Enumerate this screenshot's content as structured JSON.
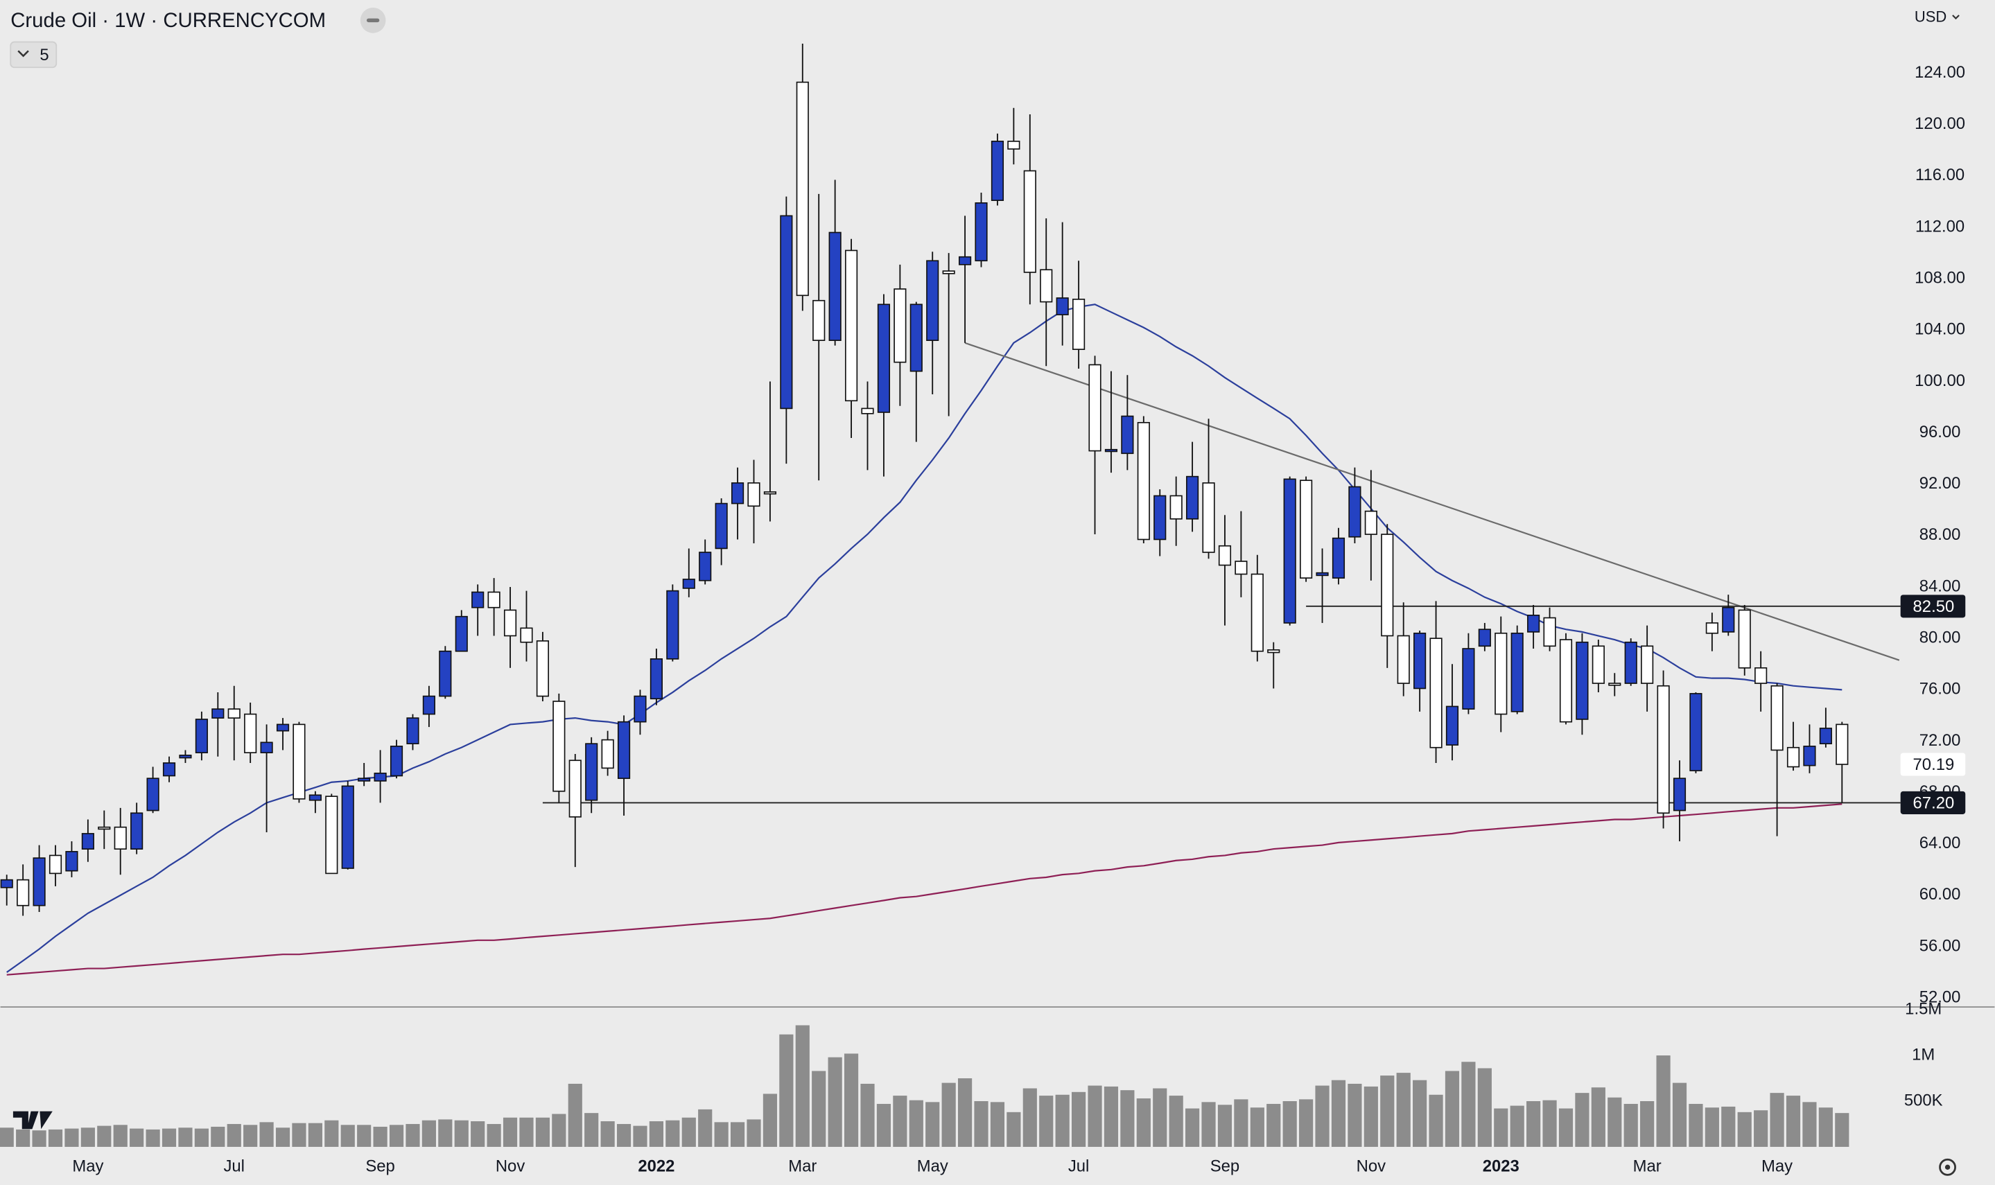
{
  "chart_data": {
    "type": "candlestick",
    "title": "Crude Oil · 1W · CURRENCYCOM",
    "indicator_count": "5",
    "currency": "USD",
    "up_color": "#2442c2",
    "down_color": "#ffffff",
    "categories": [
      null,
      null,
      null,
      null,
      null,
      "May",
      null,
      null,
      null,
      null,
      null,
      null,
      null,
      null,
      "Jul",
      null,
      null,
      null,
      null,
      null,
      null,
      null,
      null,
      "Sep",
      null,
      null,
      null,
      null,
      null,
      null,
      null,
      "Nov",
      null,
      null,
      null,
      null,
      null,
      null,
      null,
      null,
      "2022",
      null,
      null,
      null,
      null,
      null,
      null,
      null,
      null,
      "Mar",
      null,
      null,
      null,
      null,
      null,
      null,
      null,
      "May",
      null,
      null,
      null,
      null,
      null,
      null,
      null,
      null,
      "Jul",
      null,
      null,
      null,
      null,
      null,
      null,
      null,
      null,
      "Sep",
      null,
      null,
      null,
      null,
      null,
      null,
      null,
      null,
      "Nov",
      null,
      null,
      null,
      null,
      null,
      null,
      null,
      "2023",
      null,
      null,
      null,
      null,
      null,
      null,
      null,
      null,
      "Mar",
      null,
      null,
      null,
      null,
      null,
      null,
      null,
      "May",
      null,
      null,
      null,
      null
    ],
    "open": [
      60.6,
      61.2,
      59.2,
      63.1,
      61.9,
      63.6,
      65.3,
      65.3,
      63.6,
      66.6,
      69.3,
      70.7,
      71.1,
      73.8,
      74.5,
      74.1,
      71.1,
      72.8,
      73.3,
      67.4,
      67.7,
      62.1,
      68.9,
      68.9,
      69.3,
      71.8,
      74.1,
      75.5,
      79.0,
      82.4,
      83.6,
      82.2,
      80.8,
      79.8,
      75.1,
      70.5,
      67.4,
      72.1,
      69.1,
      73.5,
      75.3,
      78.4,
      83.9,
      84.5,
      87.0,
      90.5,
      92.1,
      91.4,
      97.9,
      123.3,
      106.3,
      103.2,
      110.2,
      97.9,
      97.6,
      107.2,
      100.8,
      103.2,
      108.6,
      109.1,
      109.4,
      114.1,
      118.7,
      116.4,
      108.7,
      105.2,
      106.4,
      101.3,
      94.6,
      94.4,
      96.8,
      87.7,
      91.1,
      89.3,
      92.1,
      87.2,
      86.0,
      85.0,
      79.1,
      81.2,
      92.3,
      84.9,
      84.7,
      87.9,
      89.9,
      88.1,
      80.2,
      76.1,
      80.0,
      71.7,
      74.5,
      79.4,
      80.4,
      74.3,
      80.5,
      81.6,
      79.9,
      73.7,
      79.4,
      76.5,
      76.5,
      79.4,
      76.3,
      66.6,
      69.7,
      81.2,
      80.5,
      82.2,
      77.7,
      76.3,
      71.5,
      70.1,
      71.8,
      73.3
    ],
    "high": [
      61.6,
      62.4,
      63.9,
      63.9,
      64.2,
      65.9,
      66.6,
      66.8,
      67.2,
      70.0,
      70.8,
      71.3,
      74.3,
      75.8,
      76.3,
      75.0,
      73.3,
      73.8,
      73.5,
      68.1,
      67.9,
      68.9,
      70.3,
      71.3,
      72.1,
      74.1,
      76.3,
      79.4,
      82.2,
      84.2,
      84.7,
      84.0,
      83.7,
      80.5,
      75.7,
      71.0,
      72.3,
      72.8,
      74.0,
      76.0,
      79.2,
      84.2,
      87.0,
      87.7,
      90.9,
      93.3,
      93.9,
      100.0,
      114.4,
      126.3,
      114.6,
      115.7,
      111.1,
      100.0,
      106.8,
      109.1,
      106.2,
      110.1,
      110.0,
      112.9,
      114.7,
      119.3,
      121.3,
      120.8,
      112.7,
      112.4,
      109.4,
      102.0,
      100.8,
      100.5,
      97.3,
      91.6,
      92.6,
      95.3,
      97.1,
      89.6,
      89.9,
      86.5,
      79.7,
      92.6,
      92.6,
      87.0,
      88.6,
      93.3,
      93.1,
      88.9,
      82.8,
      80.6,
      82.9,
      78.0,
      80.4,
      81.2,
      81.7,
      81.0,
      82.6,
      82.4,
      80.4,
      80.4,
      79.9,
      77.3,
      80.0,
      81.0,
      77.5,
      70.5,
      75.8,
      82.0,
      83.4,
      82.6,
      79.0,
      76.5,
      73.5,
      73.3,
      74.6,
      73.5
    ],
    "low": [
      59.2,
      58.4,
      58.7,
      60.7,
      61.4,
      62.6,
      63.6,
      61.6,
      63.2,
      66.4,
      68.8,
      70.3,
      70.5,
      70.8,
      70.5,
      70.3,
      64.9,
      71.3,
      67.2,
      66.4,
      61.7,
      62.0,
      68.5,
      67.2,
      69.1,
      71.3,
      73.1,
      75.3,
      79.2,
      80.2,
      80.2,
      77.7,
      78.2,
      75.1,
      67.2,
      62.2,
      66.4,
      69.3,
      66.2,
      72.5,
      74.8,
      78.2,
      83.2,
      84.2,
      85.7,
      87.7,
      87.4,
      89.1,
      93.6,
      105.5,
      92.3,
      102.8,
      95.6,
      93.1,
      92.6,
      98.1,
      95.3,
      99.0,
      97.3,
      103.0,
      108.9,
      113.7,
      116.9,
      106.0,
      101.2,
      102.8,
      101.0,
      88.1,
      92.9,
      93.1,
      87.4,
      86.4,
      87.2,
      88.3,
      86.2,
      81.0,
      83.2,
      78.2,
      76.1,
      81.0,
      84.4,
      81.2,
      84.2,
      87.4,
      84.5,
      77.7,
      75.5,
      74.3,
      70.3,
      70.5,
      74.1,
      79.0,
      72.7,
      74.1,
      79.2,
      79.0,
      73.3,
      72.5,
      75.8,
      75.5,
      76.3,
      74.3,
      65.2,
      64.2,
      69.5,
      79.0,
      80.2,
      77.1,
      74.3,
      64.6,
      69.7,
      69.5,
      71.5,
      67.2
    ],
    "close": [
      61.2,
      59.2,
      62.9,
      61.7,
      63.4,
      64.8,
      65.2,
      63.6,
      66.4,
      69.1,
      70.3,
      70.9,
      73.7,
      74.5,
      73.8,
      71.1,
      71.9,
      73.3,
      67.5,
      67.8,
      61.7,
      68.5,
      69.1,
      69.5,
      71.6,
      73.8,
      75.5,
      79.0,
      81.7,
      83.6,
      82.4,
      80.2,
      79.7,
      75.5,
      68.1,
      66.1,
      71.8,
      69.9,
      73.5,
      75.5,
      78.4,
      83.7,
      84.6,
      86.7,
      90.5,
      92.1,
      90.3,
      91.3,
      112.9,
      106.7,
      103.2,
      111.6,
      98.5,
      97.5,
      106.0,
      101.5,
      106.0,
      109.4,
      108.4,
      109.7,
      113.9,
      118.7,
      118.1,
      108.5,
      106.2,
      106.5,
      102.5,
      94.6,
      94.7,
      97.3,
      87.7,
      91.1,
      89.3,
      92.6,
      86.7,
      85.7,
      85.0,
      79.0,
      78.9,
      92.4,
      84.7,
      85.1,
      87.8,
      91.8,
      88.1,
      80.2,
      76.5,
      80.4,
      71.5,
      74.7,
      79.2,
      80.7,
      74.1,
      80.4,
      81.8,
      79.4,
      73.5,
      79.7,
      76.5,
      76.4,
      79.7,
      76.5,
      66.4,
      69.1,
      75.7,
      80.4,
      82.4,
      77.7,
      76.5,
      71.3,
      70.0,
      71.6,
      73.0,
      70.19
    ],
    "ylim": [
      51.3,
      129.7
    ],
    "yticks": [
      {
        "value": 52,
        "label": "52.00"
      },
      {
        "value": 56,
        "label": "56.00"
      },
      {
        "value": 60,
        "label": "60.00"
      },
      {
        "value": 64,
        "label": "64.00"
      },
      {
        "value": 68,
        "label": "68.00"
      },
      {
        "value": 72,
        "label": "72.00"
      },
      {
        "value": 76,
        "label": "76.00"
      },
      {
        "value": 80,
        "label": "80.00"
      },
      {
        "value": 84,
        "label": "84.00"
      },
      {
        "value": 88,
        "label": "88.00"
      },
      {
        "value": 92,
        "label": "92.00"
      },
      {
        "value": 96,
        "label": "96.00"
      },
      {
        "value": 100,
        "label": "100.00"
      },
      {
        "value": 104,
        "label": "104.00"
      },
      {
        "value": 108,
        "label": "108.00"
      },
      {
        "value": 112,
        "label": "112.00"
      },
      {
        "value": 116,
        "label": "116.00"
      },
      {
        "value": 120,
        "label": "120.00"
      },
      {
        "value": 124,
        "label": "124.00"
      }
    ],
    "lines": [
      {
        "color": "#2b3f9c",
        "values": [
          54.0,
          54.9,
          55.8,
          56.8,
          57.7,
          58.6,
          59.3,
          60.0,
          60.7,
          61.4,
          62.3,
          63.1,
          64.0,
          64.9,
          65.7,
          66.4,
          67.2,
          67.6,
          68.0,
          68.4,
          68.8,
          68.9,
          69.1,
          69.2,
          69.3,
          69.9,
          70.4,
          71.0,
          71.5,
          72.1,
          72.7,
          73.3,
          73.4,
          73.5,
          73.7,
          73.8,
          73.6,
          73.5,
          73.3,
          74.1,
          75.0,
          75.8,
          76.7,
          77.5,
          78.4,
          79.2,
          80.0,
          80.9,
          81.7,
          83.2,
          84.7,
          85.8,
          87.0,
          88.1,
          89.4,
          90.6,
          92.3,
          93.9,
          95.6,
          97.5,
          99.3,
          101.2,
          103.0,
          103.8,
          104.7,
          105.5,
          105.8,
          106.0,
          105.4,
          104.8,
          104.2,
          103.5,
          102.7,
          102.0,
          101.2,
          100.3,
          99.5,
          98.7,
          97.9,
          97.1,
          95.8,
          94.4,
          93.1,
          91.6,
          90.1,
          88.6,
          87.5,
          86.3,
          85.2,
          84.5,
          83.9,
          83.2,
          82.7,
          82.1,
          81.6,
          81.0,
          80.7,
          80.5,
          80.2,
          79.9,
          79.5,
          79.2,
          78.5,
          77.7,
          77.0,
          76.9,
          76.9,
          76.8,
          76.6,
          76.5,
          76.3,
          76.2,
          76.1,
          76.0
        ]
      },
      {
        "color": "#8e1f55",
        "values": [
          53.8,
          53.9,
          54.0,
          54.1,
          54.2,
          54.3,
          54.3,
          54.4,
          54.5,
          54.6,
          54.7,
          54.8,
          54.9,
          55.0,
          55.1,
          55.2,
          55.3,
          55.4,
          55.4,
          55.5,
          55.6,
          55.7,
          55.8,
          55.9,
          56.0,
          56.1,
          56.2,
          56.3,
          56.4,
          56.5,
          56.5,
          56.6,
          56.7,
          56.8,
          56.9,
          57.0,
          57.1,
          57.2,
          57.3,
          57.4,
          57.5,
          57.6,
          57.7,
          57.8,
          57.9,
          58.0,
          58.1,
          58.2,
          58.4,
          58.6,
          58.8,
          59.0,
          59.2,
          59.4,
          59.6,
          59.8,
          59.9,
          60.1,
          60.3,
          60.5,
          60.7,
          60.9,
          61.1,
          61.3,
          61.4,
          61.6,
          61.7,
          61.9,
          62.0,
          62.2,
          62.3,
          62.5,
          62.7,
          62.8,
          63.0,
          63.1,
          63.3,
          63.4,
          63.6,
          63.7,
          63.8,
          63.9,
          64.1,
          64.2,
          64.3,
          64.4,
          64.5,
          64.6,
          64.7,
          64.8,
          65.0,
          65.1,
          65.2,
          65.3,
          65.4,
          65.5,
          65.6,
          65.7,
          65.8,
          65.9,
          65.9,
          66.0,
          66.1,
          66.2,
          66.3,
          66.4,
          66.5,
          66.6,
          66.7,
          66.8,
          66.8,
          66.9,
          67.0,
          67.1
        ]
      }
    ],
    "hlines": [
      {
        "value": 82.5,
        "label": "82.50"
      },
      {
        "value": 67.2,
        "label": "67.20"
      }
    ],
    "last_price": 70.19,
    "trendline": [
      103.0,
      78.3
    ],
    "volume": {
      "color": "#8c8c8c",
      "ylim": [
        0,
        1530000
      ],
      "yticks": [
        {
          "value": 500000,
          "label": "500K"
        },
        {
          "value": 1000000,
          "label": "1M"
        },
        {
          "value": 1500000,
          "label": "1.5M"
        }
      ],
      "values": [
        210000,
        190000,
        180000,
        190000,
        200000,
        210000,
        230000,
        240000,
        200000,
        190000,
        200000,
        210000,
        200000,
        220000,
        250000,
        240000,
        270000,
        210000,
        260000,
        260000,
        290000,
        240000,
        240000,
        220000,
        240000,
        250000,
        290000,
        300000,
        290000,
        280000,
        250000,
        320000,
        320000,
        320000,
        360000,
        690000,
        370000,
        280000,
        250000,
        230000,
        280000,
        290000,
        320000,
        410000,
        270000,
        270000,
        300000,
        580000,
        1230000,
        1330000,
        830000,
        980000,
        1020000,
        690000,
        470000,
        560000,
        510000,
        490000,
        700000,
        750000,
        500000,
        490000,
        380000,
        640000,
        560000,
        570000,
        600000,
        670000,
        660000,
        620000,
        530000,
        640000,
        560000,
        420000,
        490000,
        460000,
        520000,
        430000,
        470000,
        500000,
        520000,
        670000,
        730000,
        690000,
        660000,
        780000,
        810000,
        730000,
        570000,
        830000,
        930000,
        860000,
        420000,
        450000,
        500000,
        510000,
        420000,
        590000,
        650000,
        540000,
        470000,
        500000,
        1000000,
        700000,
        470000,
        430000,
        440000,
        380000,
        400000,
        590000,
        560000,
        490000,
        430000,
        370000
      ]
    }
  }
}
